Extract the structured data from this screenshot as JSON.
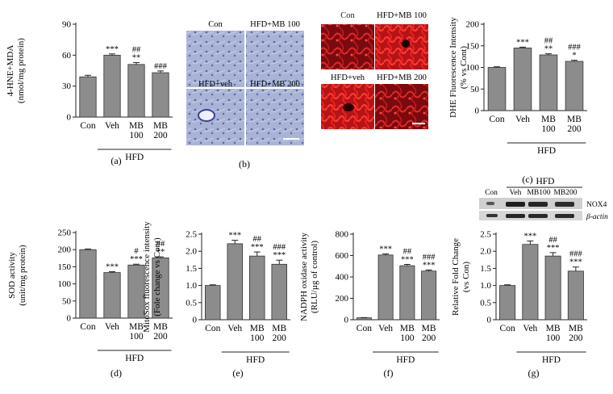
{
  "colors": {
    "bar": "#8c8c8c",
    "bar_control": "#8c8c8c",
    "axis": "#222222",
    "micrograph_bg": "#a9b3d6",
    "fluorescence_bg": "#8a0a10"
  },
  "chart_data": [
    {
      "id": "a",
      "type": "bar",
      "panel_label": "(a)",
      "ylabel": [
        "4-HNE+MDA",
        "(nmol/mg protein)"
      ],
      "yticks": [
        0,
        30,
        60,
        90
      ],
      "ylim": [
        0,
        90
      ],
      "categories": [
        [
          "Con"
        ],
        [
          "Veh"
        ],
        [
          "MB",
          "100"
        ],
        [
          "MB",
          "200"
        ]
      ],
      "values": [
        39,
        60,
        51,
        43
      ],
      "errors": [
        1.5,
        1.2,
        1.8,
        1.7
      ],
      "significance": [
        [],
        [
          "***"
        ],
        [
          "##",
          "**"
        ],
        [
          "###"
        ]
      ],
      "group_label": "HFD"
    },
    {
      "id": "c",
      "type": "bar",
      "panel_label": "(c)",
      "ylabel": [
        "DHE Fluorescence Intensity",
        "(% vs Cont)"
      ],
      "yticks": [
        0,
        50,
        100,
        150,
        200
      ],
      "ylim": [
        0,
        200
      ],
      "categories": [
        [
          "Con"
        ],
        [
          "Veh"
        ],
        [
          "MB",
          "100"
        ],
        [
          "MB",
          "200"
        ]
      ],
      "values": [
        100,
        145,
        129,
        114
      ],
      "errors": [
        1.5,
        2,
        2.5,
        2.5
      ],
      "significance": [
        [],
        [
          "***"
        ],
        [
          "##",
          "**"
        ],
        [
          "###",
          "*"
        ]
      ],
      "group_label": "HFD"
    },
    {
      "id": "d",
      "type": "bar",
      "panel_label": "(d)",
      "ylabel": [
        "SOD activity",
        "(unit/mg protein)"
      ],
      "yticks": [
        0,
        50,
        100,
        150,
        200,
        250
      ],
      "ylim": [
        0,
        250
      ],
      "categories": [
        [
          "Con"
        ],
        [
          "Veh"
        ],
        [
          "MB",
          "100"
        ],
        [
          "MB",
          "200"
        ]
      ],
      "values": [
        200,
        133,
        155,
        176
      ],
      "errors": [
        2,
        2.5,
        2.5,
        3
      ],
      "significance": [
        [],
        [
          "***"
        ],
        [
          "#",
          "***"
        ],
        [
          "##",
          "**"
        ]
      ],
      "group_label": "HFD"
    },
    {
      "id": "e",
      "type": "bar",
      "panel_label": "(e)",
      "ylabel": [
        "MitoSox fluorescence intensity",
        "(Fole change vs Cont)"
      ],
      "yticks": [
        "0",
        "0.5",
        "1.0",
        "1.5",
        "2.0",
        "2.5"
      ],
      "ylim": [
        0,
        2.5
      ],
      "categories": [
        [
          "Con"
        ],
        [
          "Veh"
        ],
        [
          "MB",
          "100"
        ],
        [
          "MB",
          "200"
        ]
      ],
      "values": [
        1.0,
        2.22,
        1.86,
        1.62
      ],
      "errors": [
        0.02,
        0.1,
        0.12,
        0.12
      ],
      "significance": [
        [],
        [
          "***"
        ],
        [
          "##",
          "***"
        ],
        [
          "###",
          "***"
        ]
      ],
      "group_label": "HFD"
    },
    {
      "id": "f",
      "type": "bar",
      "panel_label": "(f)",
      "ylabel": [
        "NADPH oxidase activity",
        "(RLU/µg of control)"
      ],
      "yticks": [
        0,
        200,
        400,
        600,
        800
      ],
      "ylim": [
        0,
        800
      ],
      "categories": [
        [
          "Con"
        ],
        [
          "Veh"
        ],
        [
          "MB",
          "100"
        ],
        [
          "MB",
          "200"
        ]
      ],
      "values": [
        18,
        605,
        505,
        455
      ],
      "errors": [
        2,
        10,
        12,
        10
      ],
      "significance": [
        [],
        [
          "***"
        ],
        [
          "##",
          "***"
        ],
        [
          "###",
          "***"
        ]
      ],
      "group_label": "HFD"
    },
    {
      "id": "g",
      "type": "bar",
      "panel_label": "(g)",
      "ylabel": [
        "Relative Fold Change",
        "(vs Con)"
      ],
      "yticks": [
        "0",
        "0.5",
        "1.0",
        "1.5",
        "2.0",
        "2.5"
      ],
      "ylim": [
        0,
        2.5
      ],
      "categories": [
        [
          "Con"
        ],
        [
          "Veh"
        ],
        [
          "MB",
          "100"
        ],
        [
          "MB",
          "200"
        ]
      ],
      "values": [
        1.0,
        2.2,
        1.86,
        1.42
      ],
      "errors": [
        0.02,
        0.1,
        0.1,
        0.12
      ],
      "significance": [
        [],
        [
          "***"
        ],
        [
          "##",
          "***"
        ],
        [
          "###",
          "***"
        ]
      ],
      "group_label": "HFD"
    }
  ],
  "image_panels": {
    "b": {
      "panel_label": "(b)",
      "labels": [
        "Con",
        "HFD+MB 100",
        "HFD+veh",
        "HFD+MB 200"
      ]
    },
    "c_images": {
      "labels": [
        "Con",
        "HFD+MB 100",
        "HFD+veh",
        "HFD+MB 200"
      ]
    },
    "g_blot": {
      "group_label": "HFD",
      "lanes": [
        "Con",
        "Veh",
        "MB100",
        "MB200"
      ],
      "bands": [
        "NOX4",
        "β-actin"
      ]
    }
  }
}
